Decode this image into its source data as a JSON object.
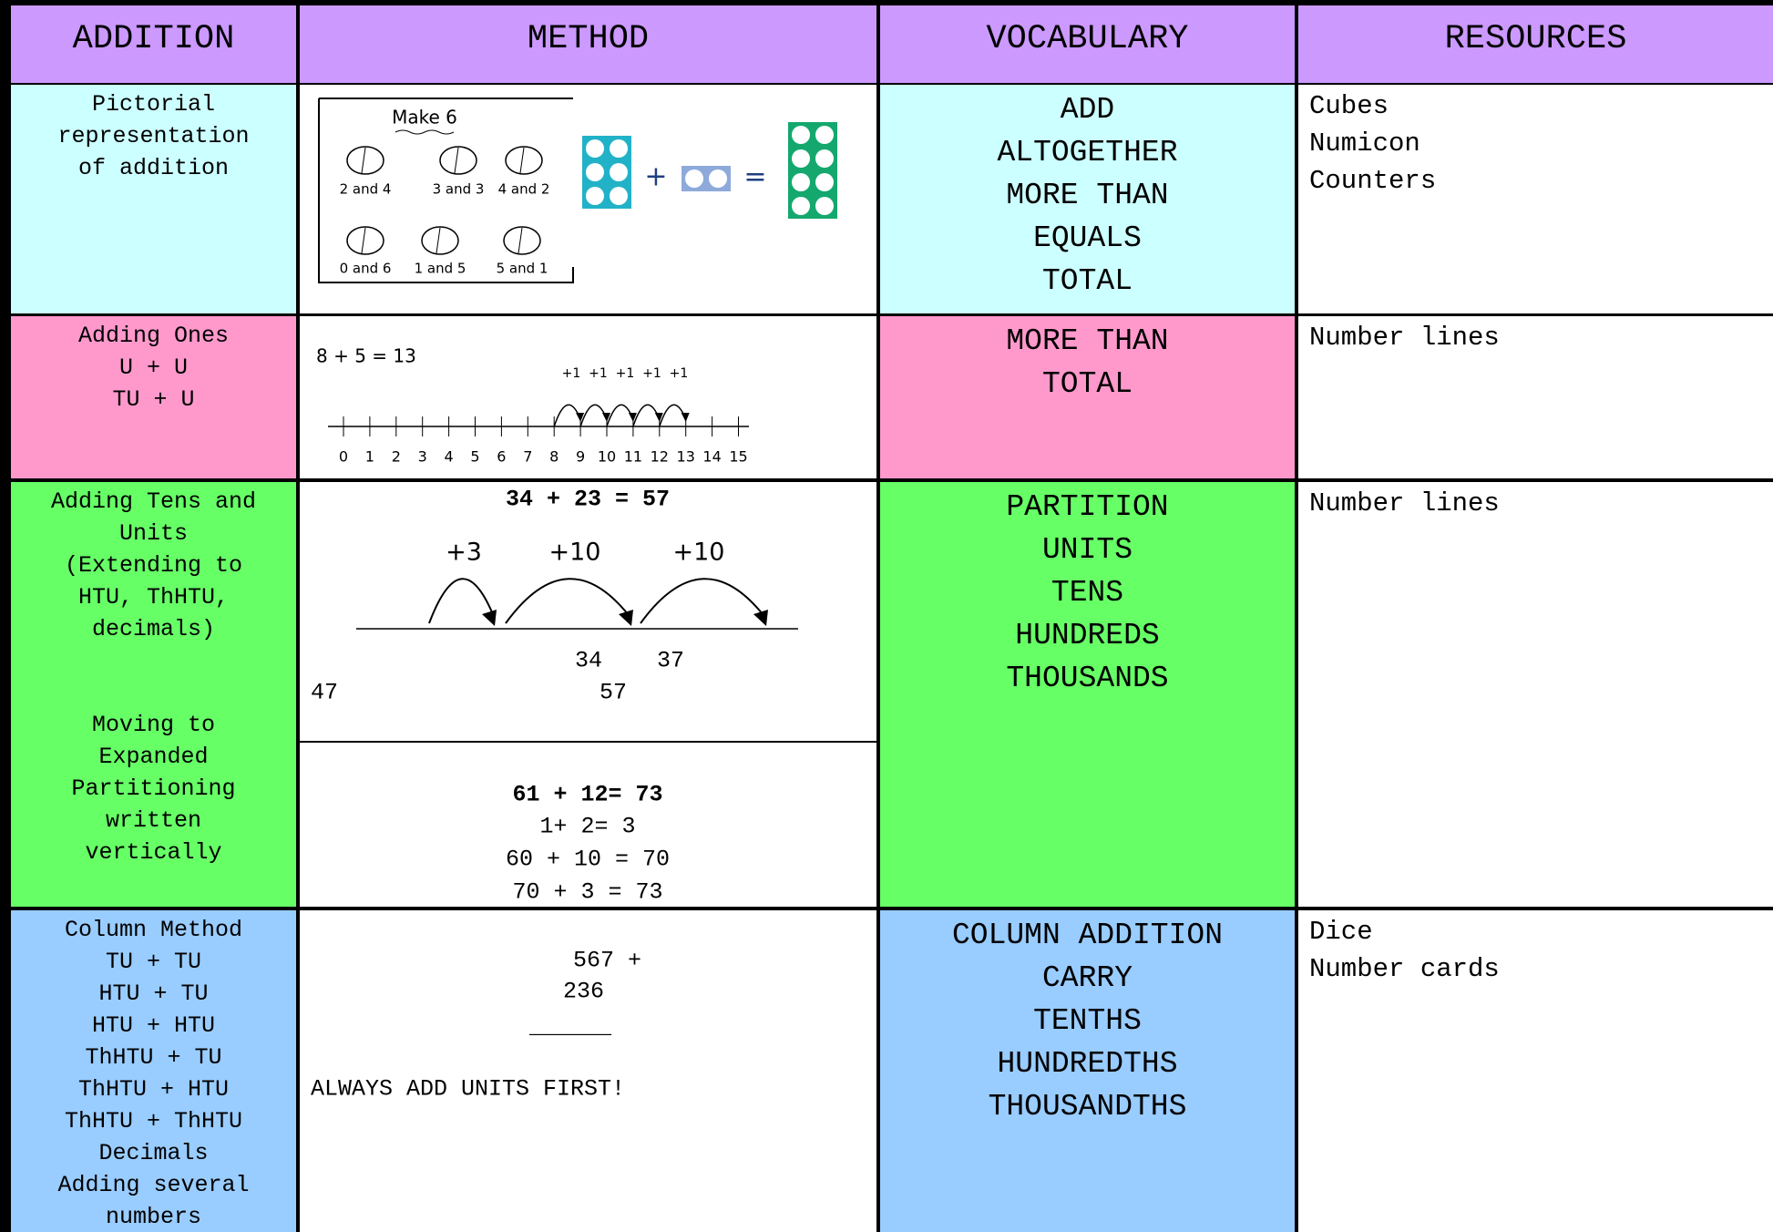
{
  "header": [
    "ADDITION",
    "METHOD",
    "VOCABULARY",
    "RESOURCES"
  ],
  "rows": [
    {
      "topic": [
        [
          "Pictorial",
          "representation",
          "of addition"
        ]
      ],
      "method": {
        "title": "Make 6",
        "groups": [
          "2 and 4",
          "3 and 3",
          "4 and 2",
          "0 and 6",
          "1 and 5",
          "5 and 1"
        ],
        "signs": [
          "+",
          "="
        ]
      },
      "vocabulary": [
        "ADD",
        "ALTOGETHER",
        "MORE THAN",
        "EQUALS",
        "TOTAL"
      ],
      "resources": [
        "Cubes",
        "Numicon",
        "Counters"
      ]
    },
    {
      "topic": [
        [
          "Adding Ones",
          "U + U",
          "TU + U"
        ]
      ],
      "method": {
        "sum": "8 + 5 = 13",
        "jumps": [
          "+1",
          "+1",
          "+1",
          "+1",
          "+1"
        ],
        "numbers": [
          0,
          1,
          2,
          3,
          4,
          5,
          6,
          7,
          8,
          9,
          10,
          11,
          12,
          13,
          14,
          15
        ]
      },
      "vocabulary": [
        "MORE THAN",
        "TOTAL"
      ],
      "resources": [
        "Number lines"
      ]
    },
    {
      "topic": [
        [
          "Adding Tens and",
          "Units",
          "(Extending to",
          "HTU, ThHTU,",
          "decimals)"
        ],
        [
          "Moving to",
          "Expanded",
          "Partitioning",
          "written",
          "vertically"
        ]
      ],
      "method": {
        "sum": "34 + 23 = 57",
        "jumps": [
          "+3",
          "+10",
          "+10"
        ],
        "labels": [
          "34    37",
          "47",
          "57"
        ],
        "expanded": [
          "61 + 12= 73",
          "1+ 2= 3",
          "60 + 10 = 70",
          "70 + 3 = 73"
        ]
      },
      "vocabulary": [
        "PARTITION",
        "UNITS",
        "TENS",
        "HUNDREDS",
        "THOUSANDS"
      ],
      "resources": [
        "Number lines"
      ]
    },
    {
      "topic": [
        [
          "Column Method",
          "TU + TU",
          "HTU + TU",
          "HTU + HTU",
          "ThHTU + TU",
          "ThHTU + HTU",
          "ThHTU + ThHTU",
          "Decimals",
          "Adding several",
          "numbers"
        ]
      ],
      "method": {
        "lines": [
          "567 +",
          "236",
          "______"
        ],
        "note": "ALWAYS ADD UNITS FIRST!"
      },
      "vocabulary": [
        "COLUMN ADDITION",
        "CARRY",
        "TENTHS",
        "HUNDREDTHS",
        "THOUSANDTHS"
      ],
      "resources": [
        "Dice",
        "Number cards"
      ]
    }
  ]
}
